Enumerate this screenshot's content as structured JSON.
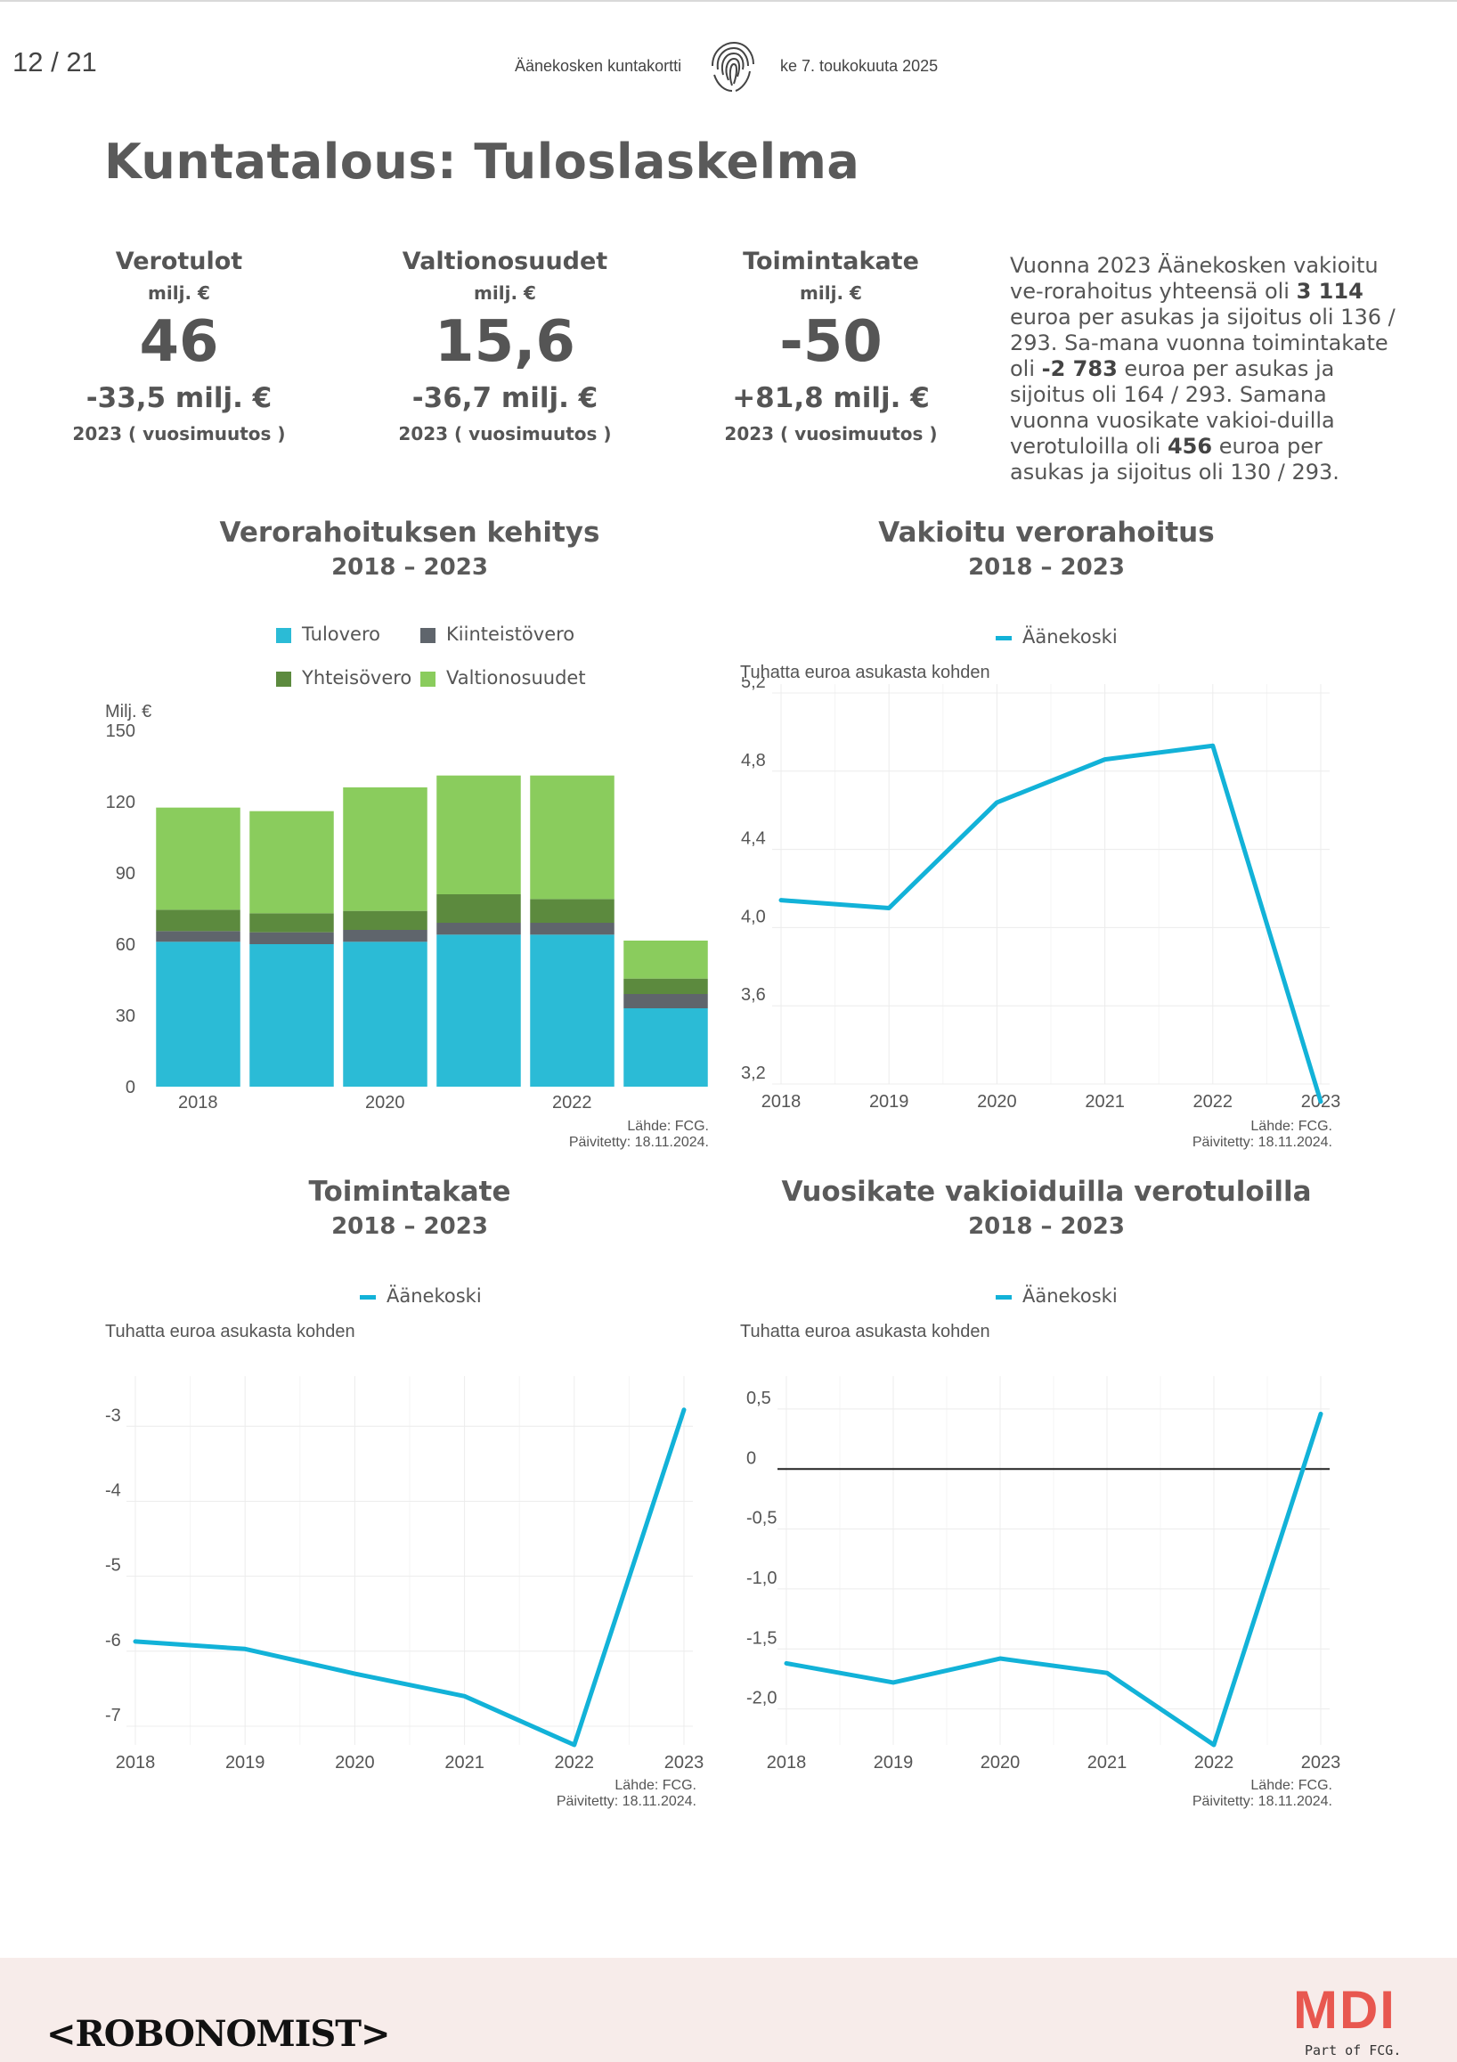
{
  "header": {
    "page": "12 / 21",
    "doc": "Äänekosken kuntakortti",
    "date": "ke 7. toukokuuta 2025"
  },
  "title": "Kuntatalous:  Tuloslaskelma",
  "kpis": [
    {
      "name": "Verotulot",
      "unit": "milj. €",
      "value": "46",
      "change": "-33,5 milj. €",
      "year": "2023 ( vuosimuutos )"
    },
    {
      "name": "Valtionosuudet",
      "unit": "milj. €",
      "value": "15,6",
      "change": "-36,7 milj. €",
      "year": "2023 ( vuosimuutos )"
    },
    {
      "name": "Toimintakate",
      "unit": "milj. €",
      "value": "-50",
      "change": "+81,8 milj. €",
      "year": "2023 ( vuosimuutos )"
    }
  ],
  "summary": {
    "p1": "Vuonna 2023 Äänekosken vakioitu ve-rorahoitus yhteensä oli ",
    "v1": "3 114",
    "p2": " euroa per asukas ja sijoitus oli 136 / 293. Sa-mana vuonna toimintakate oli ",
    "v2": "-2 783",
    "p3": " euroa per asukas ja sijoitus oli 164 / 293. Samana vuonna vuosikate vakioi-duilla verotuloilla oli ",
    "v3": "456",
    "p4": " euroa per asukas ja sijoitus oli 130 / 293."
  },
  "source": {
    "line1": "Lähde: FCG.",
    "line2": "Päivitetty: 18.11.2024."
  },
  "footer": {
    "left": "<ROBONOMIST>",
    "right": "MDI",
    "right_sub": "Part of FCG."
  },
  "colors": {
    "tulovero": "#2bbbd6",
    "kiinteistovero": "#5f656c",
    "yhteisovero": "#5c8a3e",
    "valtionosuudet": "#8acc5d",
    "line": "#12b2d8"
  },
  "chart_data": [
    {
      "type": "bar",
      "stacked": true,
      "title": "Verorahoituksen kehitys",
      "subtitle": "2018 – 2023",
      "ylabel": "Milj. €",
      "ylim": [
        0,
        150
      ],
      "yticks": [
        0,
        30,
        60,
        90,
        120,
        150
      ],
      "categories": [
        "2018",
        "2019",
        "2020",
        "2021",
        "2022",
        "2023"
      ],
      "xtick_labels": [
        "2018",
        "2020",
        "2022"
      ],
      "series": [
        {
          "name": "Tulovero",
          "values": [
            61,
            60,
            61,
            64,
            64,
            33
          ]
        },
        {
          "name": "Kiinteistövero",
          "values": [
            4.5,
            5,
            5,
            5,
            5,
            6
          ]
        },
        {
          "name": "Yhteisövero",
          "values": [
            9,
            8,
            8,
            12,
            10,
            6.5
          ]
        },
        {
          "name": "Valtionosuudet",
          "values": [
            43,
            43,
            52,
            50,
            52,
            16
          ]
        }
      ]
    },
    {
      "type": "line",
      "title": "Vakioitu verorahoitus",
      "subtitle": "2018 – 2023",
      "ylabel": "Tuhatta euroa asukasta kohden",
      "legend": "Äänekoski",
      "ylim": [
        3.2,
        5.2
      ],
      "yticks": [
        "3,2",
        "3,6",
        "4,0",
        "4,4",
        "4,8",
        "5,2"
      ],
      "ytick_values": [
        3.2,
        3.6,
        4.0,
        4.4,
        4.8,
        5.2
      ],
      "x": [
        "2018",
        "2019",
        "2020",
        "2021",
        "2022",
        "2023"
      ],
      "values": [
        4.14,
        4.1,
        4.64,
        4.86,
        4.93,
        3.11
      ]
    },
    {
      "type": "line",
      "title": "Toimintakate",
      "subtitle": "2018 – 2023",
      "ylabel": "Tuhatta euroa asukasta kohden",
      "legend": "Äänekoski",
      "ylim": [
        -7.25,
        -2.45
      ],
      "yticks": [
        "-7",
        "-6",
        "-5",
        "-4",
        "-3"
      ],
      "ytick_values": [
        -7,
        -6,
        -5,
        -4,
        -3
      ],
      "x": [
        "2018",
        "2019",
        "2020",
        "2021",
        "2022",
        "2023"
      ],
      "values": [
        -5.87,
        -5.97,
        -6.3,
        -6.6,
        -7.25,
        -2.78
      ]
    },
    {
      "type": "line",
      "title": "Vuosikate vakioiduilla verotuloilla",
      "subtitle": "2018 – 2023",
      "ylabel": "Tuhatta euroa asukasta kohden",
      "legend": "Äänekoski",
      "ylim": [
        -2.3,
        0.7
      ],
      "yticks": [
        "-2,0",
        "-1,5",
        "-1,0",
        "-0,5",
        "0",
        "0,5"
      ],
      "ytick_values": [
        -2.0,
        -1.5,
        -1.0,
        -0.5,
        0,
        0.5
      ],
      "x": [
        "2018",
        "2019",
        "2020",
        "2021",
        "2022",
        "2023"
      ],
      "values": [
        -1.62,
        -1.78,
        -1.58,
        -1.7,
        -2.3,
        0.46
      ]
    }
  ]
}
